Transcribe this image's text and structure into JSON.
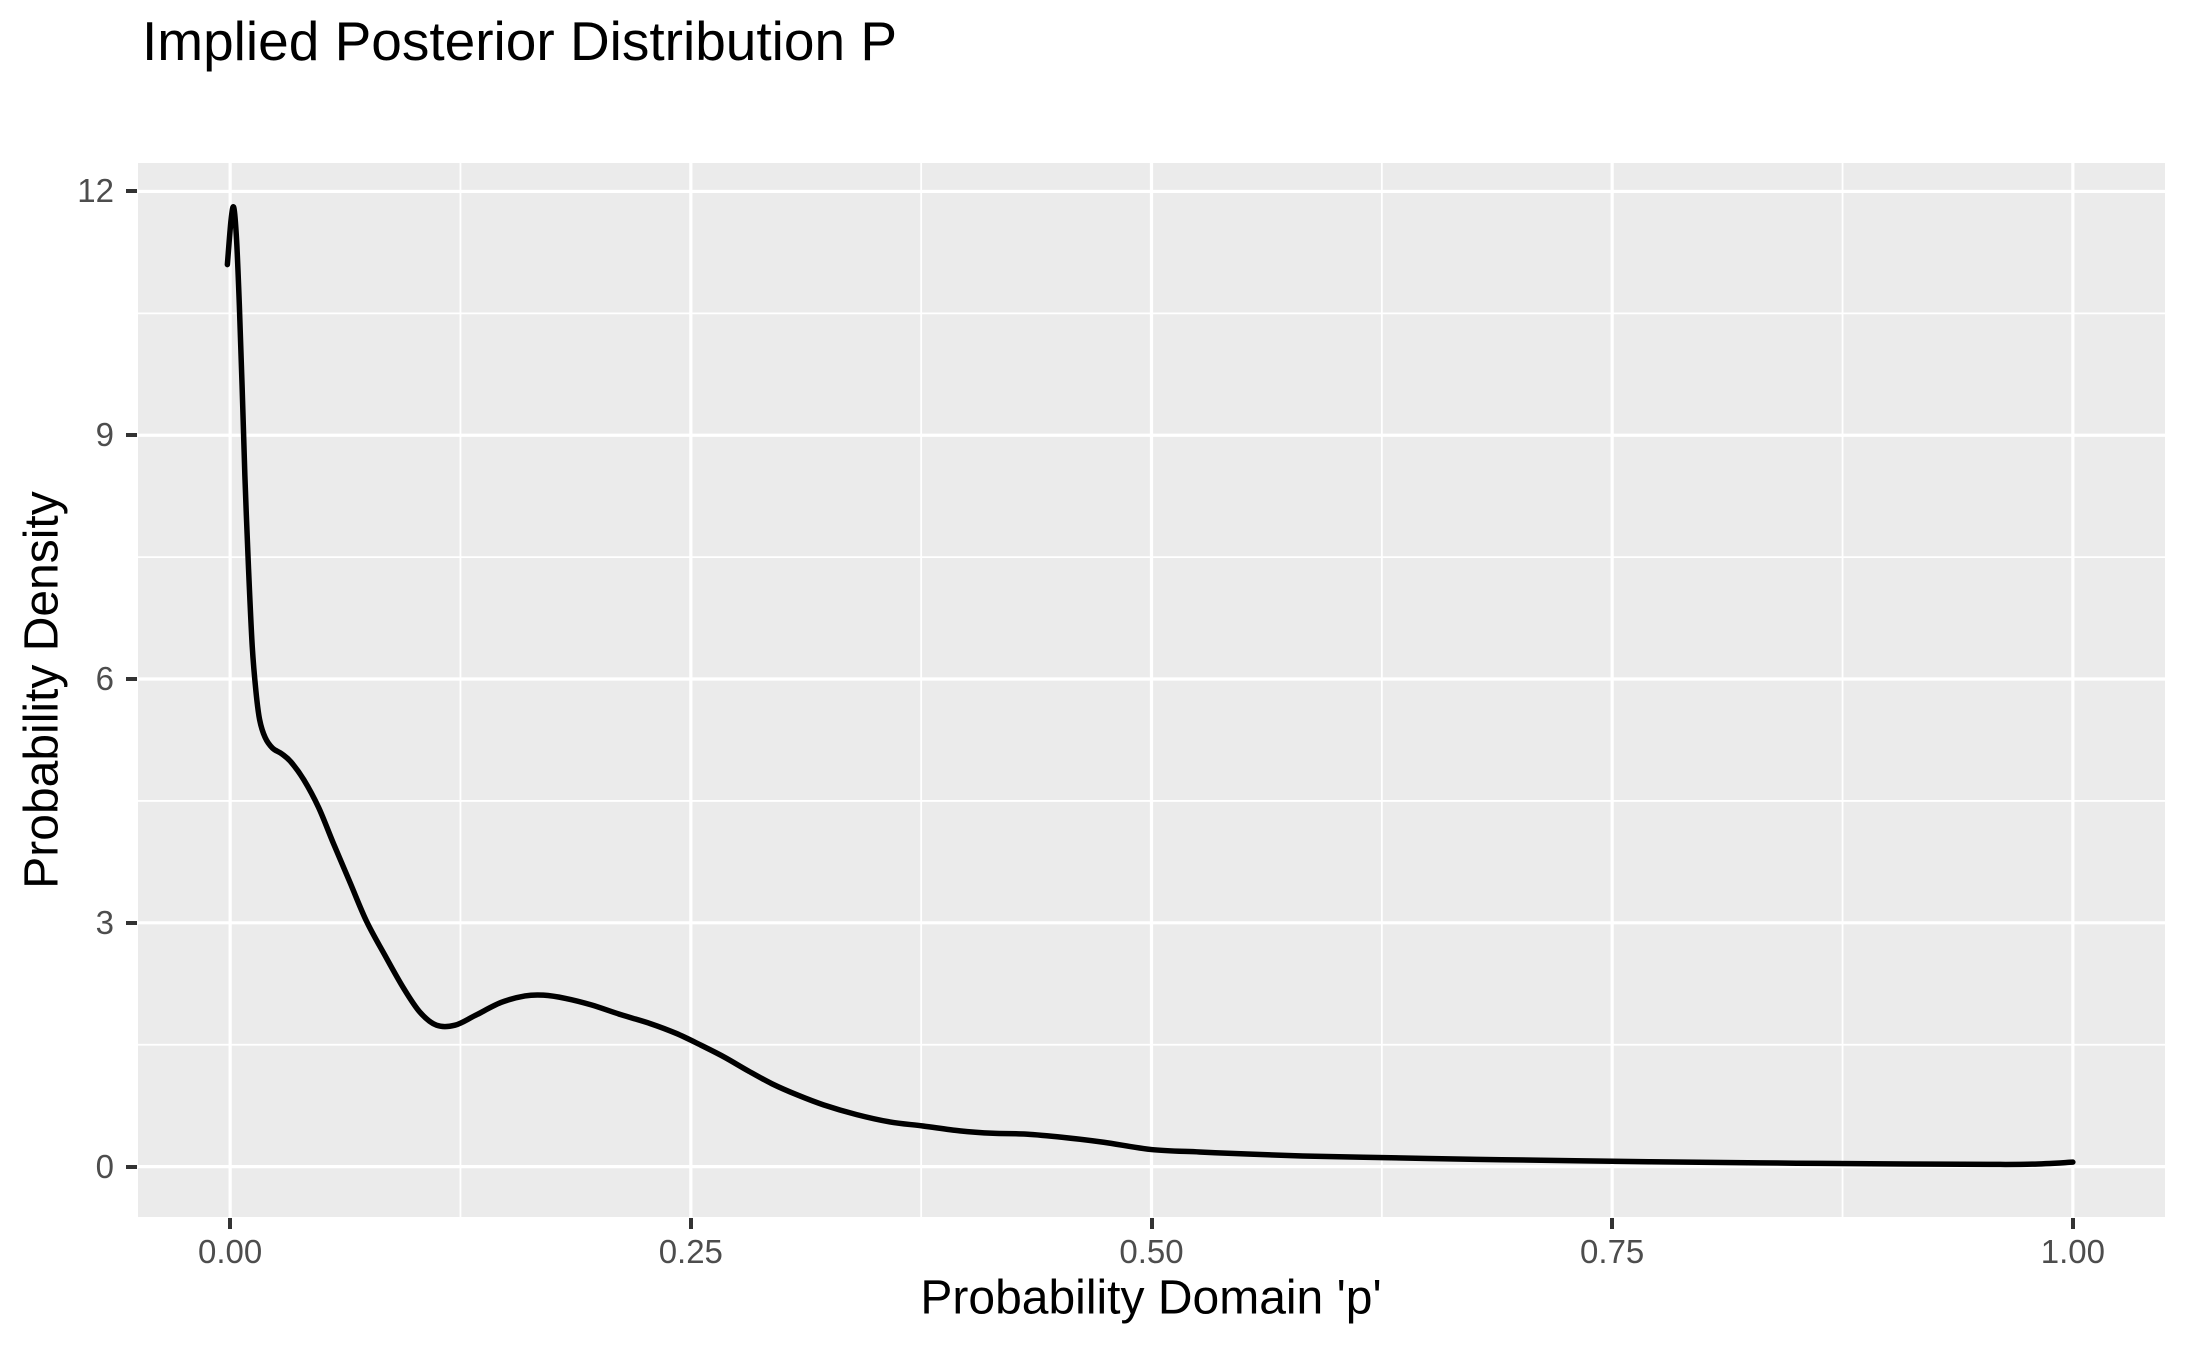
{
  "chart_data": {
    "type": "line",
    "title": "Implied Posterior Distribution P",
    "xlabel": "Probability Domain 'p'",
    "ylabel": "Probability Density",
    "legend": "none",
    "grid": "on",
    "panel_background": "#EBEBEB",
    "gridline_color": "#FFFFFF",
    "line_color": "#000000",
    "tick_label_color": "#4D4D4D",
    "tick_mark_color": "#333333",
    "x_ticks": {
      "values": [
        0.0,
        0.25,
        0.5,
        0.75,
        1.0
      ],
      "labels": [
        "0.00",
        "0.25",
        "0.50",
        "0.75",
        "1.00"
      ]
    },
    "y_ticks": {
      "values": [
        0,
        3,
        6,
        9,
        12
      ],
      "labels": [
        "0",
        "3",
        "6",
        "9",
        "12"
      ]
    },
    "x_minor_ticks": [
      0.125,
      0.375,
      0.625,
      0.875
    ],
    "y_minor_ticks": [
      1.5,
      4.5,
      7.5,
      10.5
    ],
    "xlim": [
      0,
      1
    ],
    "ylim": [
      0,
      12
    ],
    "xlim_display": [
      -0.05,
      1.05
    ],
    "ylim_display": [
      -0.62,
      12.35
    ],
    "points": [
      [
        -0.0015,
        11.1
      ],
      [
        0.0005,
        11.65
      ],
      [
        0.002,
        11.8
      ],
      [
        0.0035,
        11.4
      ],
      [
        0.005,
        10.6
      ],
      [
        0.0065,
        9.6
      ],
      [
        0.008,
        8.5
      ],
      [
        0.01,
        7.35
      ],
      [
        0.012,
        6.4
      ],
      [
        0.014,
        5.85
      ],
      [
        0.016,
        5.5
      ],
      [
        0.019,
        5.28
      ],
      [
        0.023,
        5.15
      ],
      [
        0.028,
        5.08
      ],
      [
        0.033,
        4.98
      ],
      [
        0.04,
        4.76
      ],
      [
        0.048,
        4.42
      ],
      [
        0.056,
        3.98
      ],
      [
        0.065,
        3.5
      ],
      [
        0.074,
        3.02
      ],
      [
        0.084,
        2.6
      ],
      [
        0.094,
        2.2
      ],
      [
        0.103,
        1.9
      ],
      [
        0.112,
        1.74
      ],
      [
        0.122,
        1.74
      ],
      [
        0.133,
        1.86
      ],
      [
        0.147,
        2.02
      ],
      [
        0.16,
        2.1
      ],
      [
        0.17,
        2.11
      ],
      [
        0.182,
        2.07
      ],
      [
        0.196,
        1.99
      ],
      [
        0.212,
        1.87
      ],
      [
        0.228,
        1.76
      ],
      [
        0.242,
        1.64
      ],
      [
        0.255,
        1.5
      ],
      [
        0.268,
        1.35
      ],
      [
        0.281,
        1.18
      ],
      [
        0.294,
        1.02
      ],
      [
        0.308,
        0.88
      ],
      [
        0.322,
        0.76
      ],
      [
        0.34,
        0.64
      ],
      [
        0.358,
        0.55
      ],
      [
        0.376,
        0.5
      ],
      [
        0.396,
        0.44
      ],
      [
        0.414,
        0.41
      ],
      [
        0.432,
        0.4
      ],
      [
        0.452,
        0.36
      ],
      [
        0.474,
        0.3
      ],
      [
        0.5,
        0.21
      ],
      [
        0.526,
        0.18
      ],
      [
        0.552,
        0.155
      ],
      [
        0.582,
        0.13
      ],
      [
        0.615,
        0.115
      ],
      [
        0.65,
        0.1
      ],
      [
        0.69,
        0.085
      ],
      [
        0.73,
        0.072
      ],
      [
        0.77,
        0.06
      ],
      [
        0.81,
        0.05
      ],
      [
        0.85,
        0.042
      ],
      [
        0.89,
        0.035
      ],
      [
        0.925,
        0.03
      ],
      [
        0.955,
        0.027
      ],
      [
        0.978,
        0.03
      ],
      [
        1.0,
        0.055
      ]
    ]
  }
}
